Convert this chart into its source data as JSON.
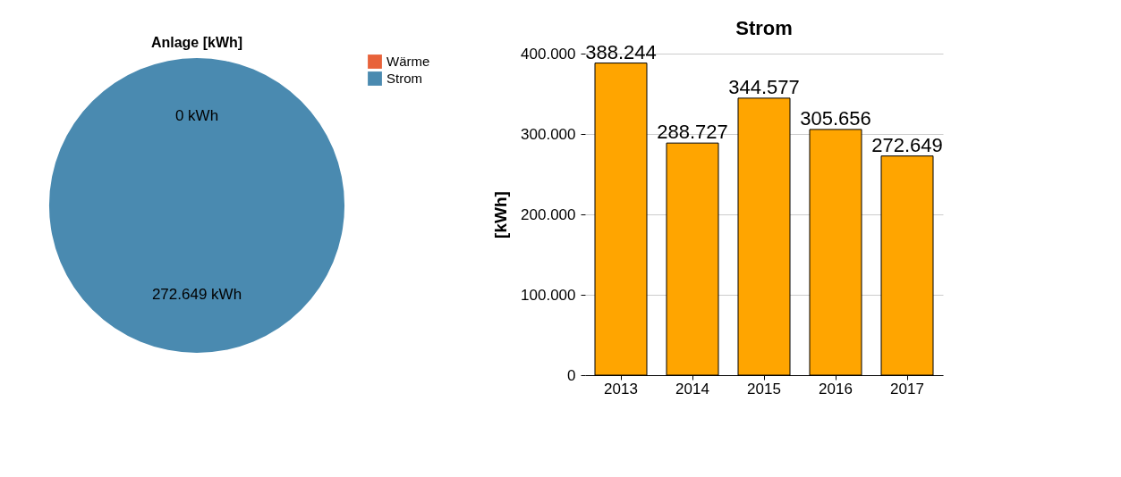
{
  "chart_data": [
    {
      "type": "pie",
      "title": "Anlage [kWh]",
      "categories": [
        "Wärme",
        "Strom"
      ],
      "values": [
        0,
        272649
      ],
      "colors": [
        "#e8623a",
        "#4a8ab0"
      ],
      "value_labels": [
        "0 kWh",
        "272.649 kWh"
      ],
      "legend": "top right"
    },
    {
      "type": "bar",
      "title": "Strom",
      "ylabel": "[kWh]",
      "categories": [
        "2013",
        "2014",
        "2015",
        "2016",
        "2017"
      ],
      "values": [
        388244,
        288727,
        344577,
        305656,
        272649
      ],
      "color": "#ffa500",
      "value_labels": [
        "388.244",
        "288.727",
        "344.577",
        "305.656",
        "272.649"
      ],
      "ylim": [
        0,
        400000
      ],
      "yticks": [
        0,
        {
          "value": 100000,
          "label": "100.000"
        },
        {
          "value": 200000,
          "label": "200.000"
        },
        {
          "value": 300000,
          "label": "300.000"
        },
        {
          "value": 400000,
          "label": "400.000"
        }
      ],
      "grid": "y"
    }
  ]
}
